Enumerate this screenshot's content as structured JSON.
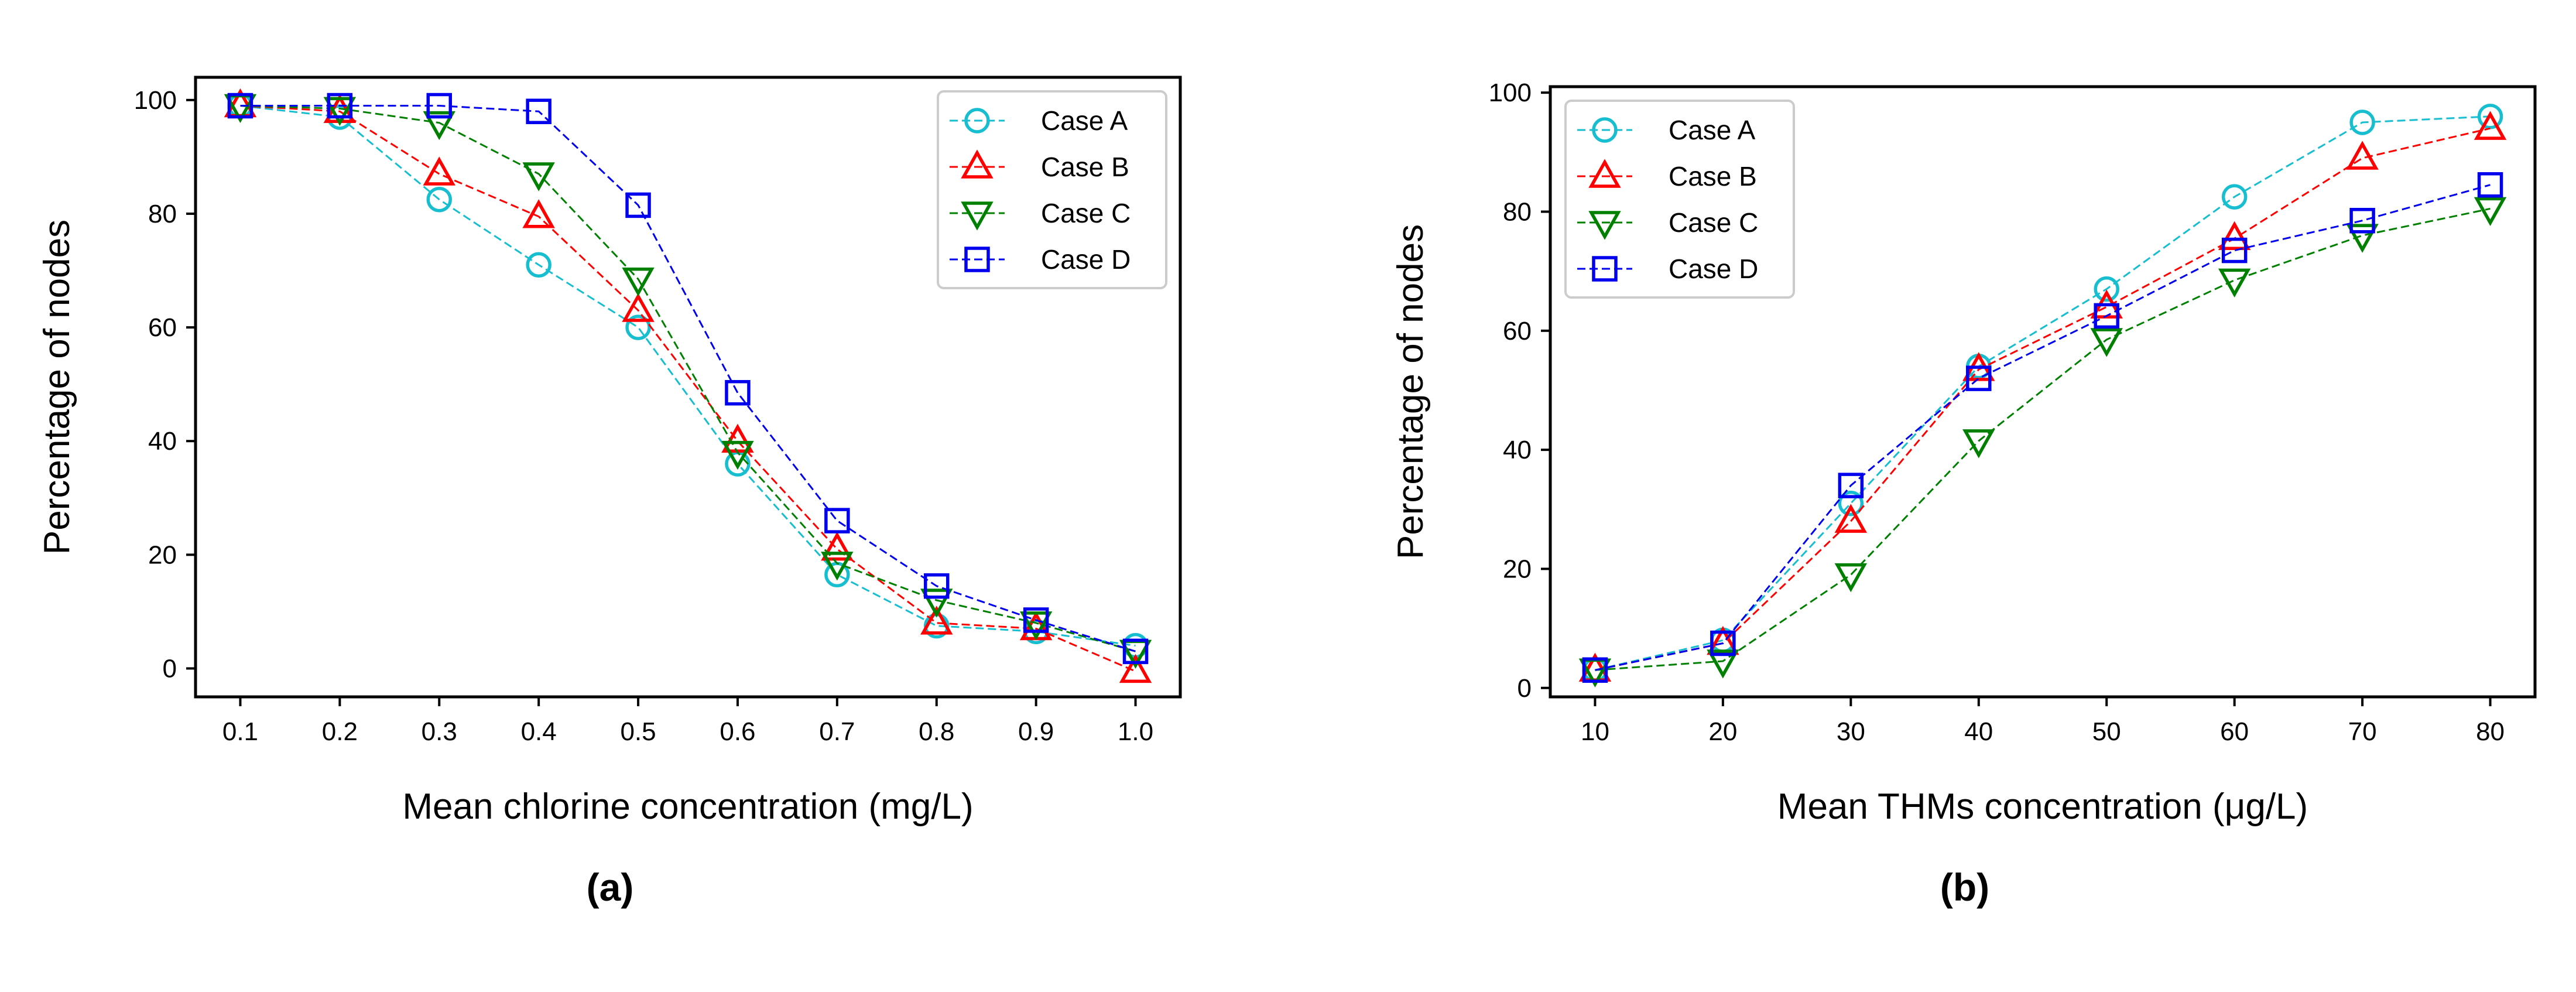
{
  "chart_data": [
    {
      "panel_label": "(a)",
      "type": "line",
      "title": "",
      "xlabel": "Mean chlorine concentration (mg/L)",
      "ylabel": "Percentage of nodes",
      "x": [
        0.1,
        0.2,
        0.3,
        0.4,
        0.5,
        0.6,
        0.7,
        0.8,
        0.9,
        1.0
      ],
      "xticks": [
        "0.1",
        "0.2",
        "0.3",
        "0.4",
        "0.5",
        "0.6",
        "0.7",
        "0.8",
        "0.9",
        "1.0"
      ],
      "xlim": [
        0.055,
        1.045
      ],
      "yticks": [
        0,
        20,
        40,
        60,
        80,
        100
      ],
      "ylim": [
        -5,
        104
      ],
      "grid": false,
      "legend_position": "upper-right",
      "series": [
        {
          "name": "Case A",
          "marker": "circle",
          "color": "#17becf",
          "line_style": "dashed",
          "values": [
            99,
            97,
            82.5,
            71,
            60,
            36,
            16.5,
            7.5,
            6.5,
            4
          ]
        },
        {
          "name": "Case B",
          "marker": "triangle-up",
          "color": "#ff0000",
          "line_style": "dashed",
          "values": [
            99,
            98,
            87,
            79.5,
            63,
            40,
            21,
            8,
            7,
            -0.5
          ]
        },
        {
          "name": "Case C",
          "marker": "triangle-down",
          "color": "#008000",
          "line_style": "dashed",
          "values": [
            99,
            98.5,
            96,
            87,
            68.5,
            38,
            18.5,
            12,
            8,
            3
          ]
        },
        {
          "name": "Case D",
          "marker": "square",
          "color": "#0000ee",
          "line_style": "dashed",
          "values": [
            99,
            99,
            99,
            98,
            81.5,
            48.5,
            26,
            14.5,
            8.5,
            3
          ]
        }
      ]
    },
    {
      "panel_label": "(b)",
      "type": "line",
      "title": "",
      "xlabel": "Mean THMs concentration (μg/L)",
      "ylabel": "Percentage of nodes",
      "x": [
        10,
        20,
        30,
        40,
        50,
        60,
        70,
        80
      ],
      "xticks": [
        "10",
        "20",
        "30",
        "40",
        "50",
        "60",
        "70",
        "80"
      ],
      "xlim": [
        6.5,
        83.5
      ],
      "yticks": [
        0,
        20,
        40,
        60,
        80,
        100
      ],
      "ylim": [
        -1.5,
        101
      ],
      "grid": false,
      "legend_position": "upper-left",
      "series": [
        {
          "name": "Case A",
          "marker": "circle",
          "color": "#17becf",
          "line_style": "dashed",
          "values": [
            3,
            8,
            31,
            54,
            67,
            82.5,
            95,
            96
          ]
        },
        {
          "name": "Case B",
          "marker": "triangle-up",
          "color": "#ff0000",
          "line_style": "dashed",
          "values": [
            3,
            7.5,
            28,
            53.5,
            64,
            75.5,
            89,
            94
          ]
        },
        {
          "name": "Case C",
          "marker": "triangle-down",
          "color": "#008000",
          "line_style": "dashed",
          "values": [
            3,
            4.5,
            19,
            41.5,
            58.5,
            68.5,
            76,
            80.5
          ]
        },
        {
          "name": "Case D",
          "marker": "square",
          "color": "#0000ee",
          "line_style": "dashed",
          "values": [
            3,
            7.5,
            34,
            52,
            62.5,
            73.5,
            78.5,
            84.5
          ]
        }
      ]
    }
  ]
}
